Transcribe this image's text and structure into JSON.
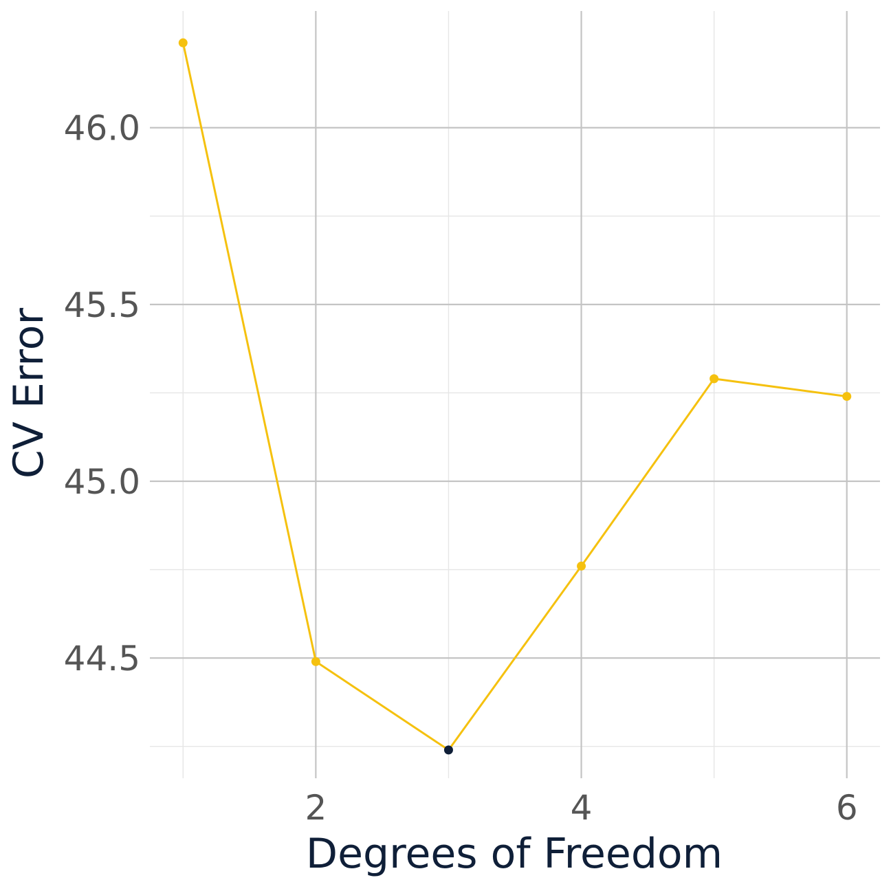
{
  "chart_data": {
    "type": "line",
    "xlabel": "Degrees of Freedom",
    "ylabel": "CV Error",
    "x": [
      1,
      2,
      3,
      4,
      5,
      6
    ],
    "series": [
      {
        "values": [
          46.24,
          44.49,
          44.24,
          44.76,
          45.29,
          45.24
        ]
      }
    ],
    "highlight_point": {
      "x": 3,
      "y": 44.24
    },
    "xlim": [
      0.75,
      6.25
    ],
    "ylim": [
      44.16,
      46.33
    ],
    "x_ticks": [
      2,
      4,
      6
    ],
    "x_tick_labels": [
      "2",
      "4",
      "6"
    ],
    "x_minor_ticks": [
      1,
      3,
      5
    ],
    "y_ticks": [
      44.5,
      45.0,
      45.5,
      46.0
    ],
    "y_tick_labels": [
      "44.5",
      "45.0",
      "45.5",
      "46.0"
    ],
    "y_minor_ticks": [
      44.25,
      44.75,
      45.25,
      45.75
    ],
    "grid": true,
    "legend": "none",
    "colors": {
      "line": "#F5C10F",
      "point": "#F5C10F",
      "highlight": "#0F1F38"
    }
  }
}
